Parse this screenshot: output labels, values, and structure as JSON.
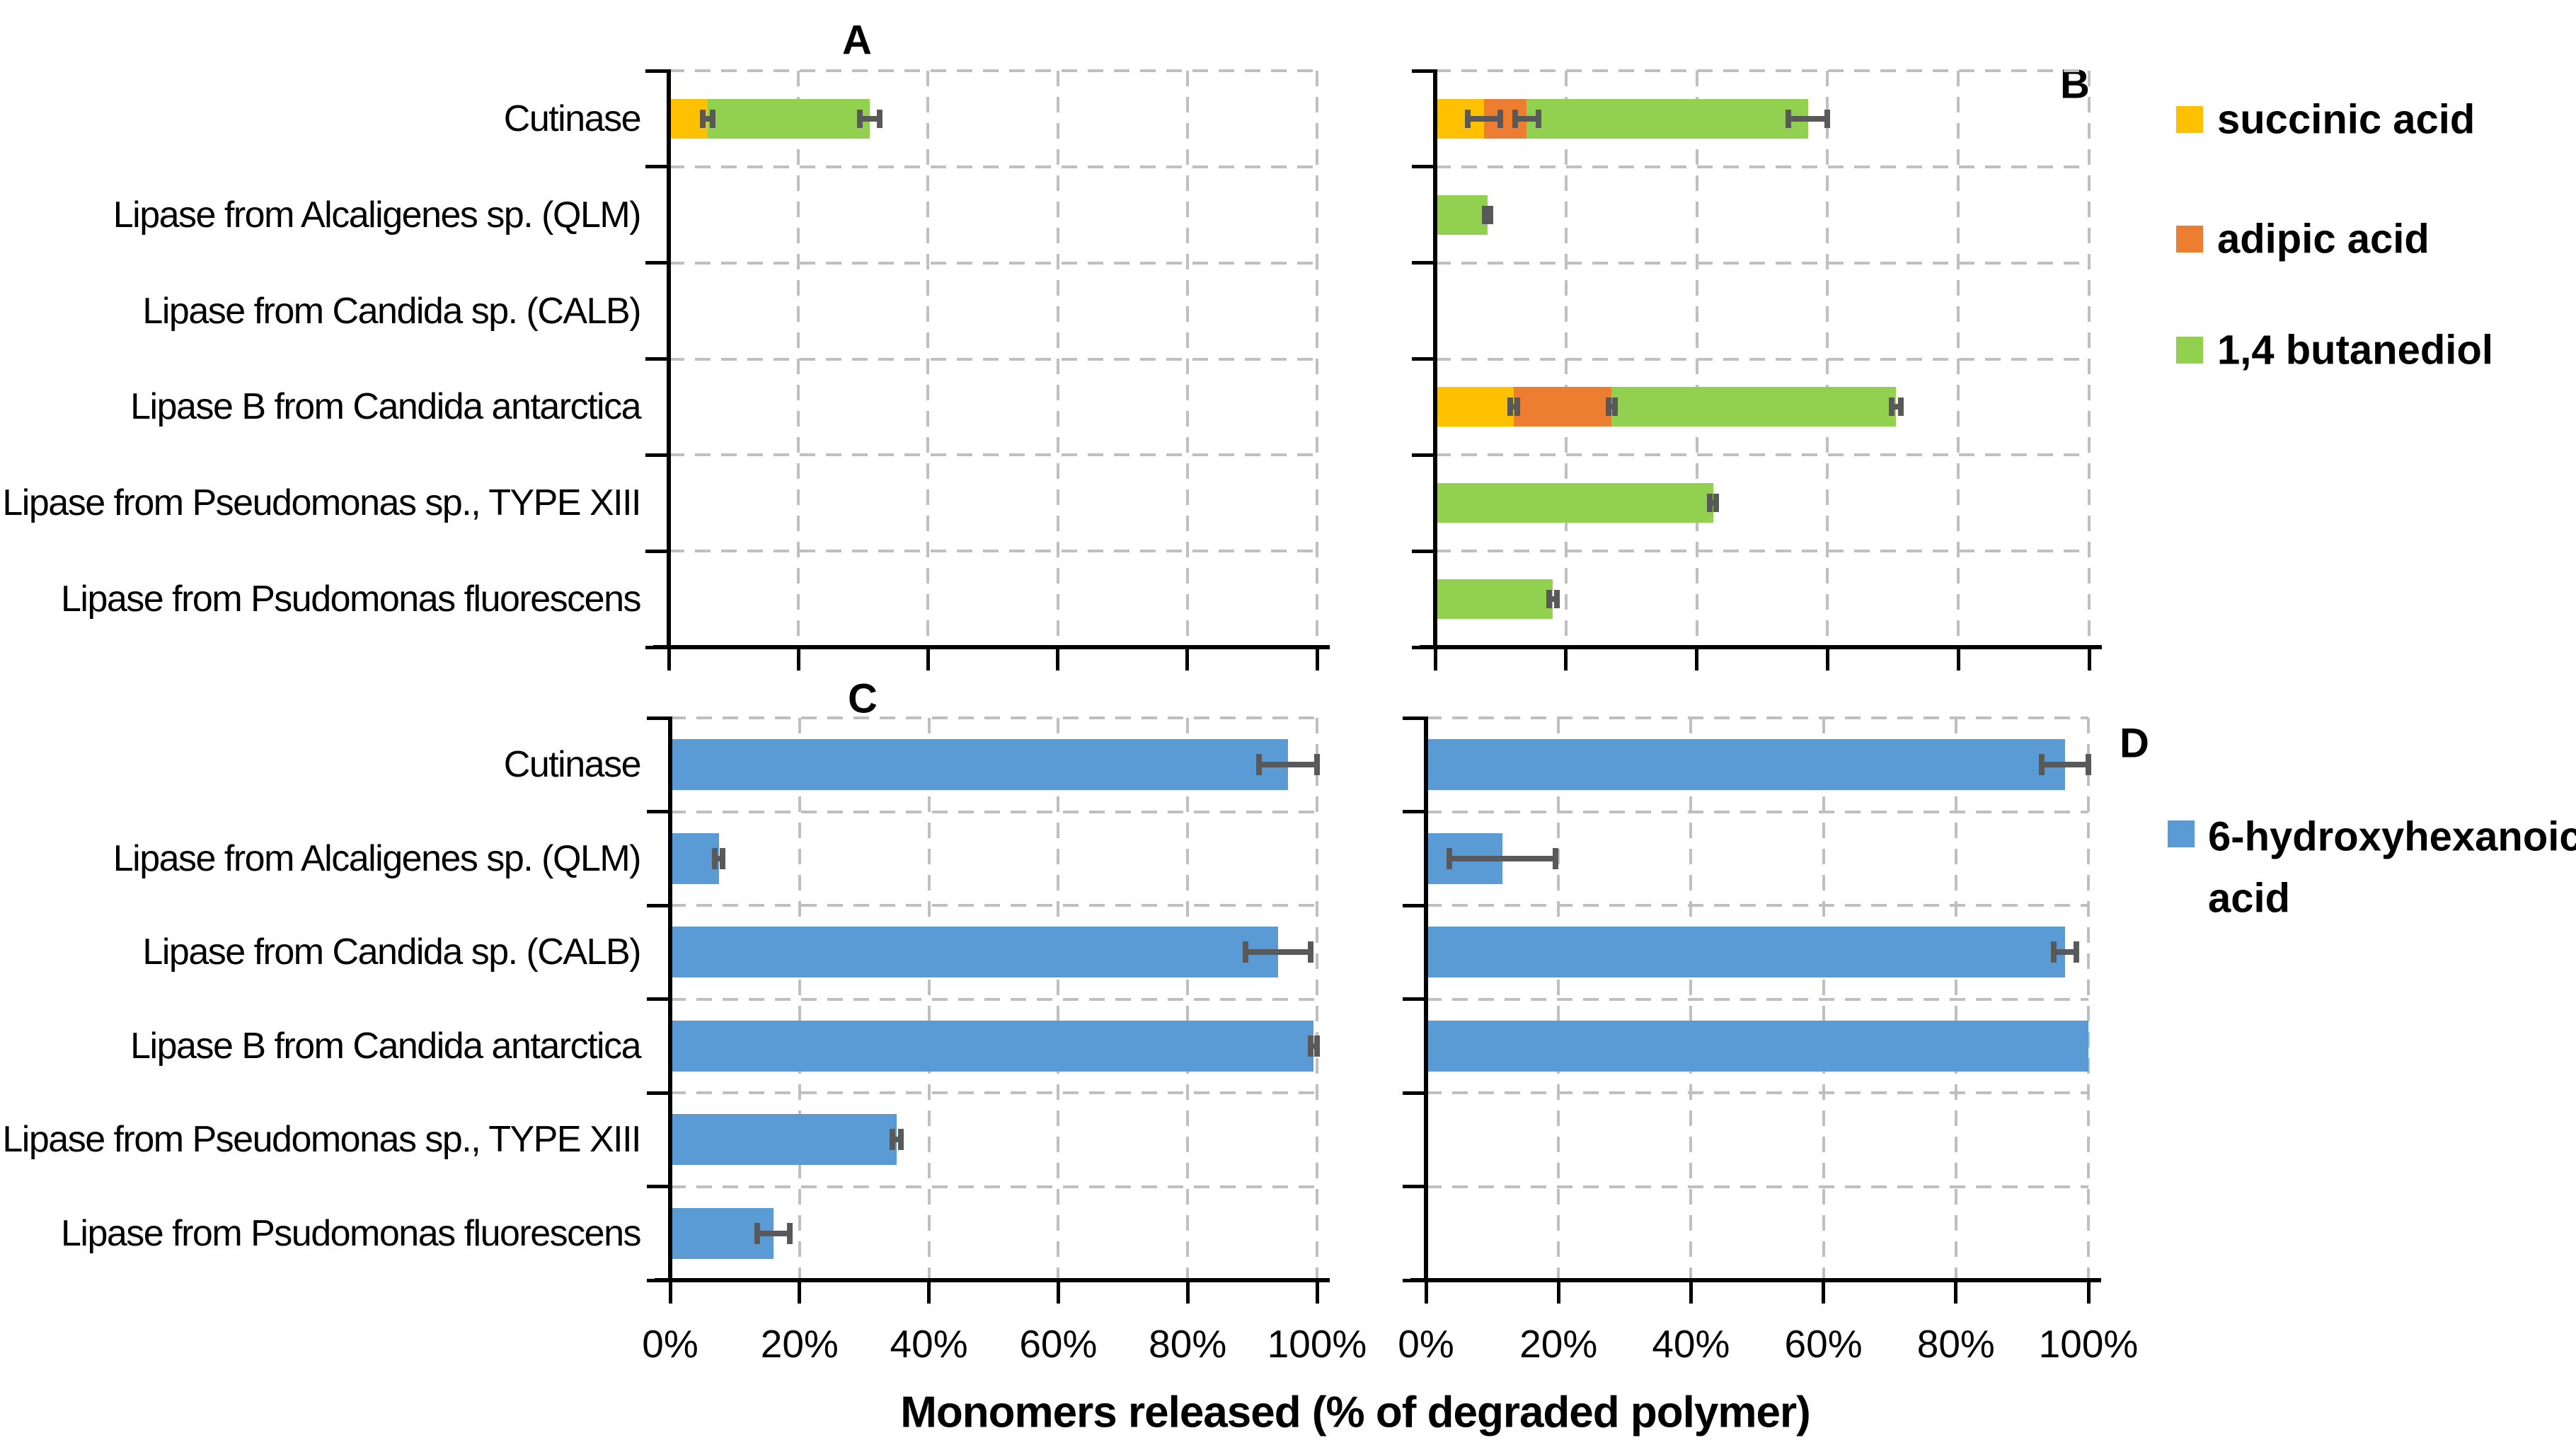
{
  "axis_title": "Monomers released (% of degraded polymer)",
  "x_tick_labels": [
    "0%",
    "20%",
    "40%",
    "60%",
    "80%",
    "100%"
  ],
  "panel_labels": [
    "A",
    "B",
    "C",
    "D"
  ],
  "categories": [
    "Cutinase",
    "Lipase from Alcaligenes sp. (QLM)",
    "Lipase from Candida sp. (CALB)",
    "Lipase B from Candida antarctica",
    "Lipase from Pseudomonas sp., TYPE XIII",
    "Lipase from Psudomonas fluorescens"
  ],
  "legend_top": [
    {
      "label": "succinic acid",
      "color": "#FFC000"
    },
    {
      "label": "adipic acid",
      "color": "#ED7D31"
    },
    {
      "label": "1,4 butanediol",
      "color": "#92D050"
    }
  ],
  "legend_bottom": {
    "label": "6-hydroxyhexanoic acid",
    "label_lines": [
      "6-hydroxyhexanoic",
      "acid"
    ],
    "color": "#5B9BD5"
  },
  "style_colors": {
    "error_bar": "#595959",
    "gridline": "#BFBFBF",
    "axis": "#000000"
  },
  "chart_data": [
    {
      "panel": "A",
      "type": "bar",
      "orientation": "horizontal",
      "stacked": true,
      "xlim": [
        0,
        100
      ],
      "grid": true,
      "x_ticks_pct": [
        0,
        20,
        40,
        60,
        80,
        100
      ],
      "categories_note": "same six enzymes as top-level categories, top to bottom",
      "series": [
        {
          "name": "succinic acid",
          "color": "#FFC000",
          "values": [
            6,
            0,
            0,
            0,
            0,
            0
          ],
          "errors": [
            0.8,
            0,
            0,
            0,
            0,
            0
          ]
        },
        {
          "name": "adipic acid",
          "color": "#ED7D31",
          "values": [
            0,
            0,
            0,
            0,
            0,
            0
          ],
          "errors": [
            0,
            0,
            0,
            0,
            0,
            0
          ]
        },
        {
          "name": "1,4 butanediol",
          "color": "#92D050",
          "values": [
            25,
            0,
            0,
            0,
            0,
            0
          ],
          "errors": [
            1.5,
            0,
            0,
            0,
            0,
            0
          ]
        }
      ]
    },
    {
      "panel": "B",
      "type": "bar",
      "orientation": "horizontal",
      "stacked": true,
      "xlim": [
        0,
        100
      ],
      "grid": true,
      "x_ticks_pct": [
        0,
        20,
        40,
        60,
        80,
        100
      ],
      "categories_note": "same six enzymes as top-level categories, top to bottom",
      "series": [
        {
          "name": "succinic acid",
          "color": "#FFC000",
          "values": [
            7.5,
            0,
            0,
            12,
            0,
            0
          ],
          "errors": [
            2.5,
            0,
            0,
            0.5,
            0,
            0
          ]
        },
        {
          "name": "adipic acid",
          "color": "#ED7D31",
          "values": [
            6.5,
            0,
            0,
            15,
            0,
            0
          ],
          "errors": [
            1.8,
            0,
            0,
            0.5,
            0,
            0
          ]
        },
        {
          "name": "1,4 butanediol",
          "color": "#92D050",
          "values": [
            43,
            8,
            0,
            43.5,
            42.5,
            18
          ],
          "errors": [
            3,
            0.4,
            0,
            0.7,
            0.5,
            0.6
          ]
        }
      ]
    },
    {
      "panel": "C",
      "type": "bar",
      "orientation": "horizontal",
      "stacked": false,
      "xlim": [
        0,
        100
      ],
      "grid": true,
      "x_ticks_pct": [
        0,
        20,
        40,
        60,
        80,
        100
      ],
      "categories_note": "same six enzymes as top-level categories, top to bottom",
      "series": [
        {
          "name": "6-hydroxyhexanoic acid",
          "color": "#5B9BD5",
          "values": [
            95.5,
            7.5,
            94,
            99.5,
            35,
            16
          ],
          "errors": [
            4.5,
            0.6,
            5,
            0.5,
            0.7,
            2.5
          ]
        }
      ]
    },
    {
      "panel": "D",
      "type": "bar",
      "orientation": "horizontal",
      "stacked": false,
      "xlim": [
        0,
        100
      ],
      "grid": true,
      "x_ticks_pct": [
        0,
        20,
        40,
        60,
        80,
        100
      ],
      "categories_note": "same six enzymes as top-level categories, top to bottom",
      "series": [
        {
          "name": "6-hydroxyhexanoic acid",
          "color": "#5B9BD5",
          "values": [
            96.5,
            11.5,
            96.5,
            100,
            0,
            0
          ],
          "errors": [
            3.5,
            8,
            1.7,
            0,
            0,
            0
          ]
        }
      ]
    }
  ]
}
